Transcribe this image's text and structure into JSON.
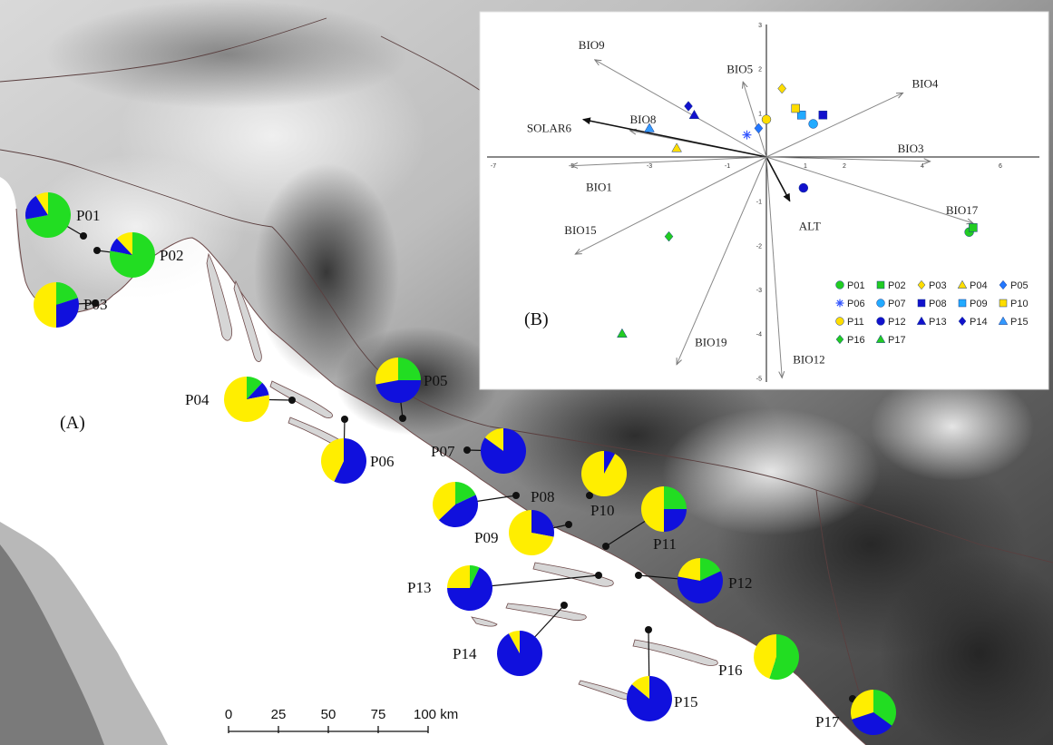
{
  "colors": {
    "green": "#22dd22",
    "blue": "#1010dd",
    "yellow": "#ffee00",
    "sea": "#ffffff",
    "coast": "#6e4a4a"
  },
  "map": {
    "panel_label": "(A)",
    "scale_bar": {
      "ticks": [
        "0",
        "25",
        "50",
        "75",
        "100 km"
      ]
    },
    "populations": [
      {
        "id": "P01",
        "label": "P01",
        "green": 0.72,
        "blue": 0.19,
        "yellow": 0.09
      },
      {
        "id": "P02",
        "label": "P02",
        "green": 0.78,
        "blue": 0.1,
        "yellow": 0.12
      },
      {
        "id": "P03",
        "label": "P03",
        "green": 0.2,
        "blue": 0.3,
        "yellow": 0.5
      },
      {
        "id": "P04",
        "label": "P04",
        "green": 0.12,
        "blue": 0.1,
        "yellow": 0.78
      },
      {
        "id": "P05",
        "label": "P05",
        "green": 0.25,
        "blue": 0.47,
        "yellow": 0.28
      },
      {
        "id": "P06",
        "label": "P06",
        "green": 0.0,
        "blue": 0.57,
        "yellow": 0.43
      },
      {
        "id": "P07",
        "label": "P07",
        "green": 0.0,
        "blue": 0.85,
        "yellow": 0.15
      },
      {
        "id": "P08",
        "label": "P08",
        "green": 0.18,
        "blue": 0.45,
        "yellow": 0.37
      },
      {
        "id": "P09",
        "label": "P09",
        "green": 0.0,
        "blue": 0.28,
        "yellow": 0.72
      },
      {
        "id": "P10",
        "label": "P10",
        "green": 0.0,
        "blue": 0.08,
        "yellow": 0.92
      },
      {
        "id": "P11",
        "label": "P11",
        "green": 0.25,
        "blue": 0.25,
        "yellow": 0.5
      },
      {
        "id": "P12",
        "label": "P12",
        "green": 0.18,
        "blue": 0.6,
        "yellow": 0.22
      },
      {
        "id": "P13",
        "label": "P13",
        "green": 0.07,
        "blue": 0.68,
        "yellow": 0.25
      },
      {
        "id": "P14",
        "label": "P14",
        "green": 0.0,
        "blue": 0.92,
        "yellow": 0.08
      },
      {
        "id": "P15",
        "label": "P15",
        "green": 0.0,
        "blue": 0.86,
        "yellow": 0.14
      },
      {
        "id": "P16",
        "label": "P16",
        "green": 0.55,
        "blue": 0.0,
        "yellow": 0.45
      },
      {
        "id": "P17",
        "label": "P17",
        "green": 0.35,
        "blue": 0.35,
        "yellow": 0.3
      }
    ]
  },
  "chart_data": {
    "type": "scatter",
    "panel_label": "(B)",
    "xlim": [
      -7,
      7
    ],
    "ylim": [
      -5,
      3
    ],
    "x_ticks": [
      -7,
      -5,
      -3,
      -1,
      1,
      2,
      4,
      6
    ],
    "y_ticks": [
      3,
      2,
      1,
      -1,
      -2,
      -3,
      -4,
      -5
    ],
    "vectors": [
      {
        "name": "BIO9",
        "x": -4.4,
        "y": 2.2,
        "bold": false
      },
      {
        "name": "BIO5",
        "x": -0.6,
        "y": 1.7,
        "bold": false
      },
      {
        "name": "BIO4",
        "x": 3.5,
        "y": 1.45,
        "bold": false
      },
      {
        "name": "BIO8",
        "x": -3.5,
        "y": 0.6,
        "bold": false
      },
      {
        "name": "SOLAR6",
        "x": -4.7,
        "y": 0.85,
        "bold": true
      },
      {
        "name": "BIO3",
        "x": 4.2,
        "y": -0.1,
        "bold": false
      },
      {
        "name": "BIO1",
        "x": -5.0,
        "y": -0.2,
        "bold": false
      },
      {
        "name": "ALT",
        "x": 0.6,
        "y": -1.0,
        "bold": true
      },
      {
        "name": "BIO17",
        "x": 5.3,
        "y": -1.5,
        "bold": false
      },
      {
        "name": "BIO15",
        "x": -4.9,
        "y": -2.2,
        "bold": false
      },
      {
        "name": "BIO19",
        "x": -2.3,
        "y": -4.7,
        "bold": false
      },
      {
        "name": "BIO12",
        "x": 0.4,
        "y": -5.0,
        "bold": false
      }
    ],
    "points": [
      {
        "name": "P01",
        "x": 5.2,
        "y": -1.7,
        "color": "#22cc22",
        "shape": "circle"
      },
      {
        "name": "P02",
        "x": 5.3,
        "y": -1.6,
        "color": "#22cc22",
        "shape": "square"
      },
      {
        "name": "P03",
        "x": 0.4,
        "y": 1.55,
        "color": "#ffdd00",
        "shape": "diamond"
      },
      {
        "name": "P04",
        "x": -2.3,
        "y": 0.2,
        "color": "#ffdd00",
        "shape": "triangle"
      },
      {
        "name": "P05",
        "x": -0.2,
        "y": 0.65,
        "color": "#2277ff",
        "shape": "diamond"
      },
      {
        "name": "P06",
        "x": -0.5,
        "y": 0.5,
        "color": "#3355ff",
        "shape": "star"
      },
      {
        "name": "P07",
        "x": 1.2,
        "y": 0.75,
        "color": "#22aaff",
        "shape": "circle"
      },
      {
        "name": "P08",
        "x": 1.45,
        "y": 0.95,
        "color": "#1111cc",
        "shape": "square"
      },
      {
        "name": "P09",
        "x": 0.9,
        "y": 0.95,
        "color": "#22aaff",
        "shape": "square"
      },
      {
        "name": "P10",
        "x": 0.75,
        "y": 1.1,
        "color": "#ffdd00",
        "shape": "square"
      },
      {
        "name": "P11",
        "x": 0.0,
        "y": 0.85,
        "color": "#ffdd00",
        "shape": "circle"
      },
      {
        "name": "P12",
        "x": 0.95,
        "y": -0.7,
        "color": "#1111cc",
        "shape": "circle"
      },
      {
        "name": "P13",
        "x": -1.85,
        "y": 0.95,
        "color": "#1111cc",
        "shape": "triangle"
      },
      {
        "name": "P14",
        "x": -2.0,
        "y": 1.15,
        "color": "#1111cc",
        "shape": "diamond"
      },
      {
        "name": "P15",
        "x": -3.0,
        "y": 0.65,
        "color": "#3399ff",
        "shape": "triangle"
      },
      {
        "name": "P16",
        "x": -2.5,
        "y": -1.8,
        "color": "#22cc22",
        "shape": "diamond"
      },
      {
        "name": "P17",
        "x": -3.7,
        "y": -4.0,
        "color": "#22cc22",
        "shape": "triangle"
      }
    ],
    "legend_placement": "bottom-right"
  }
}
